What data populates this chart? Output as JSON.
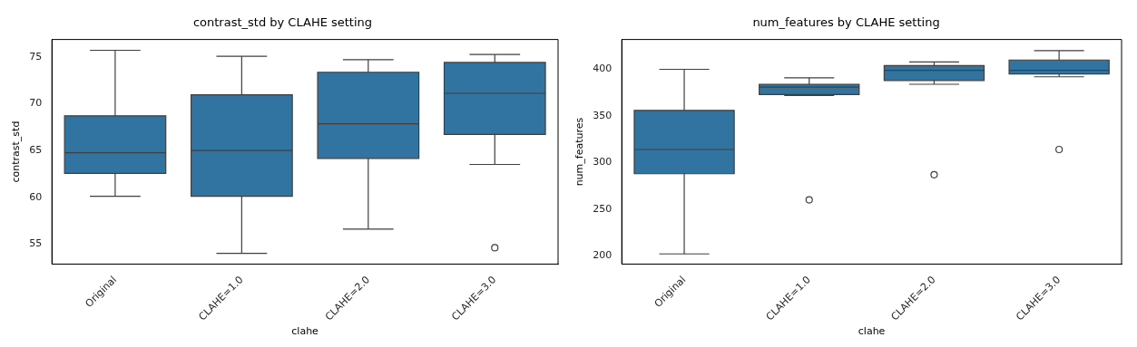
{
  "chart_data": [
    {
      "type": "box",
      "title": "contrast_std by CLAHE setting",
      "xlabel": "clahe",
      "ylabel": "contrast_std",
      "categories": [
        "Original",
        "CLAHE=1.0",
        "CLAHE=2.0",
        "CLAHE=3.0"
      ],
      "color": "#3274a1",
      "ylim": [
        52.85,
        76.85
      ],
      "yticks": [
        55,
        60,
        65,
        70,
        75
      ],
      "boxes": [
        {
          "low": 60.1,
          "q1": 62.55,
          "median": 64.75,
          "q3": 68.7,
          "high": 75.7
        },
        {
          "low": 54.0,
          "q1": 60.1,
          "median": 65.0,
          "q3": 70.95,
          "high": 75.05
        },
        {
          "low": 56.6,
          "q1": 64.15,
          "median": 67.85,
          "q3": 73.35,
          "high": 74.7
        },
        {
          "low": 63.5,
          "q1": 66.7,
          "median": 71.1,
          "q3": 74.4,
          "high": 75.25,
          "outliers": [
            54.6
          ]
        }
      ]
    },
    {
      "type": "box",
      "title": "num_features by CLAHE setting",
      "xlabel": "clahe",
      "ylabel": "num_features",
      "categories": [
        "Original",
        "CLAHE=1.0",
        "CLAHE=2.0",
        "CLAHE=3.0"
      ],
      "color": "#3274a1",
      "ylim": [
        191,
        432
      ],
      "yticks": [
        200,
        250,
        300,
        350,
        400
      ],
      "boxes": [
        {
          "low": 202,
          "q1": 288,
          "median": 314,
          "q3": 356,
          "high": 400
        },
        {
          "low": 372,
          "q1": 373,
          "median": 381,
          "q3": 384,
          "high": 391,
          "outliers": [
            260
          ]
        },
        {
          "low": 384,
          "q1": 388,
          "median": 399,
          "q3": 404,
          "high": 408,
          "outliers": [
            287
          ]
        },
        {
          "low": 392,
          "q1": 395,
          "median": 399,
          "q3": 410,
          "high": 420,
          "outliers": [
            314
          ]
        }
      ]
    }
  ]
}
